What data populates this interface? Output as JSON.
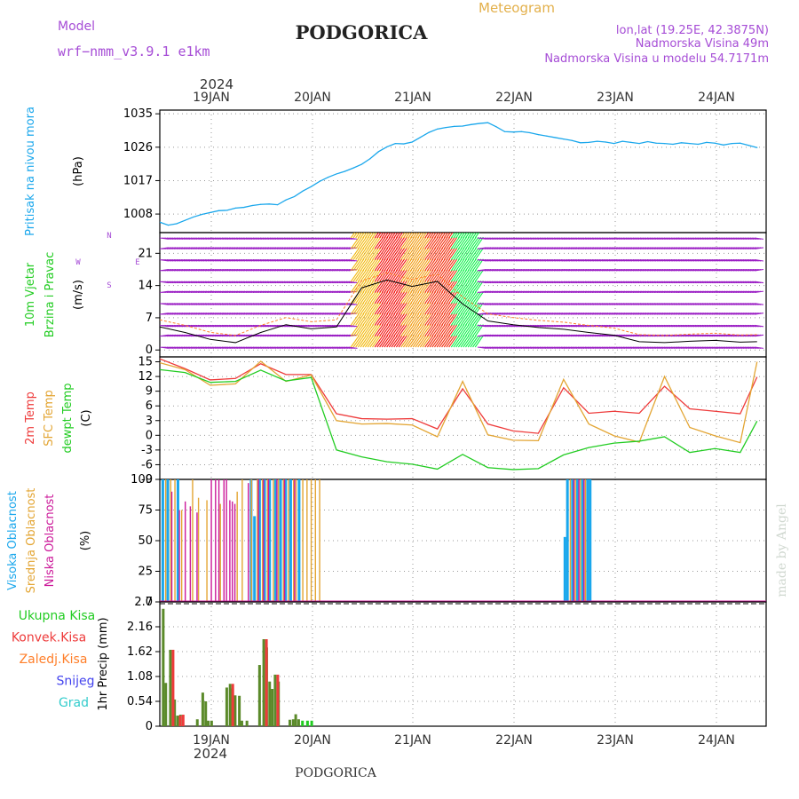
{
  "header": {
    "model_label": "Model",
    "model_name": "wrf−nmm_v3.9.1  e1km",
    "title": "PODGORICA",
    "meteogram": "Meteogram",
    "lonlat": "lon,lat (19.25E, 42.3875N)",
    "height": "Nadmorska Visina 49m",
    "model_height": "Nadmorska Visina u modelu 54.7171m",
    "year": "2024",
    "footer_title": "PODGORICA",
    "credit": "made by Angel"
  },
  "colors": {
    "pressure": "#1aa7ec",
    "temp2m": "#ee3b3b",
    "sfc": "#e3a533",
    "dewpt": "#22cc22",
    "high_cloud": "#1aa7ec",
    "mid_cloud": "#e3a533",
    "low_cloud": "#cc1a9a",
    "total_rain": "#5b8a2a",
    "conv_rain": "#ee3b3b",
    "frozen": "#ff7f2a",
    "snow": "#4444ee",
    "hail": "#33cccc",
    "wind_calm": "#9b1fc4"
  },
  "chart_data": [
    {
      "panel": "pressure",
      "type": "line",
      "ylabel": [
        "Pritisak na nivou mora",
        "(hPa)"
      ],
      "yticks": [
        1008,
        1017,
        1026,
        1035
      ],
      "ylim": [
        1003,
        1036
      ],
      "x_day_labels": [
        "19JAN",
        "20JAN",
        "21JAN",
        "22JAN",
        "23JAN",
        "24JAN"
      ],
      "x": [
        0,
        1,
        2,
        3,
        4,
        5,
        6,
        7,
        8,
        9,
        10,
        11,
        12,
        13,
        14,
        15,
        16,
        17,
        18,
        19,
        20,
        21,
        22,
        23,
        24,
        25,
        26,
        27,
        28,
        29,
        30,
        31,
        32,
        33,
        34,
        35,
        36,
        37,
        38,
        39,
        40,
        41,
        42,
        43,
        44,
        45,
        46,
        47,
        48,
        49,
        50,
        51,
        52,
        53,
        54,
        55,
        56,
        57,
        58,
        59,
        60,
        61,
        62,
        63,
        64,
        65,
        66,
        67,
        68,
        69,
        70,
        71
      ],
      "values": [
        1005.8,
        1005.0,
        1005.4,
        1006.3,
        1007.2,
        1007.9,
        1008.4,
        1008.9,
        1009.0,
        1009.6,
        1009.8,
        1010.3,
        1010.6,
        1010.7,
        1010.5,
        1011.8,
        1012.7,
        1014.2,
        1015.4,
        1016.8,
        1017.9,
        1018.8,
        1019.5,
        1020.4,
        1021.4,
        1022.9,
        1024.8,
        1026.1,
        1027.0,
        1026.9,
        1027.4,
        1028.7,
        1030.0,
        1030.9,
        1031.3,
        1031.6,
        1031.7,
        1032.1,
        1032.4,
        1032.6,
        1031.5,
        1030.2,
        1030.1,
        1030.2,
        1029.9,
        1029.4,
        1029.0,
        1028.6,
        1028.2,
        1027.8,
        1027.2,
        1027.3,
        1027.6,
        1027.4,
        1027.0,
        1027.6,
        1027.3,
        1027.0,
        1027.5,
        1027.1,
        1027.0,
        1026.8,
        1027.2,
        1027.0,
        1026.8,
        1027.3,
        1027.1,
        1026.6,
        1027.0,
        1027.1,
        1026.5,
        1025.9
      ]
    },
    {
      "panel": "wind",
      "type": "line",
      "ylabel": [
        "10m Vjetar",
        "Brzina i Pravac",
        "(m/s)"
      ],
      "compass": {
        "n": "N",
        "w": "W",
        "e": "E",
        "s": "S"
      },
      "yticks": [
        0,
        7,
        14,
        21
      ],
      "ylim": [
        -1.5,
        25.5
      ],
      "x": [
        0,
        3,
        6,
        9,
        12,
        15,
        18,
        21,
        24,
        27,
        30,
        33,
        36,
        39,
        42,
        45,
        48,
        51,
        54,
        57,
        60,
        63,
        66,
        69,
        71
      ],
      "values": [
        5.0,
        3.8,
        2.3,
        1.6,
        3.8,
        5.5,
        4.6,
        5.0,
        13.5,
        15.2,
        13.8,
        14.9,
        10.0,
        6.3,
        5.5,
        4.9,
        4.5,
        3.8,
        3.2,
        1.8,
        1.6,
        1.9,
        2.1,
        1.7,
        1.8
      ]
    },
    {
      "panel": "temperature",
      "type": "line",
      "ylabel": [
        "2m Temp",
        "SFC Temp",
        "dewpt Temp",
        "(C)"
      ],
      "yticks": [
        -9,
        -6,
        -3,
        0,
        3,
        6,
        9,
        12,
        15
      ],
      "ylim": [
        -9,
        16
      ],
      "x": [
        0,
        3,
        6,
        9,
        12,
        15,
        18,
        21,
        24,
        27,
        30,
        33,
        36,
        39,
        42,
        45,
        48,
        51,
        54,
        57,
        60,
        63,
        66,
        69,
        71
      ],
      "series": [
        {
          "name": "2m Temp",
          "values": [
            15.6,
            13.6,
            11.3,
            11.6,
            14.6,
            12.4,
            12.4,
            4.4,
            3.4,
            3.3,
            3.4,
            1.3,
            9.5,
            2.3,
            0.9,
            0.4,
            9.7,
            4.5,
            4.9,
            4.5,
            10.0,
            5.4,
            4.9,
            4.4,
            11.9
          ]
        },
        {
          "name": "SFC Temp",
          "values": [
            14.8,
            13.4,
            10.2,
            10.5,
            15.1,
            11.0,
            12.3,
            3.0,
            2.3,
            2.4,
            2.1,
            -0.3,
            11.0,
            0.1,
            -1.0,
            -1.1,
            11.4,
            2.3,
            -0.1,
            -1.4,
            12.0,
            1.6,
            -0.1,
            -1.5,
            15.0
          ]
        },
        {
          "name": "dewpt Temp",
          "values": [
            13.4,
            12.8,
            10.8,
            11.0,
            13.3,
            11.1,
            11.8,
            -3.0,
            -4.4,
            -5.4,
            -5.9,
            -6.9,
            -3.9,
            -6.6,
            -7.0,
            -6.8,
            -4.0,
            -2.5,
            -1.6,
            -1.2,
            -0.3,
            -3.5,
            -2.7,
            -3.5,
            2.9
          ]
        }
      ]
    },
    {
      "panel": "clouds",
      "type": "bar",
      "ylabel": [
        "Visoka Oblacnost",
        "Srednja Oblacnost",
        "Niska Oblacnost",
        "(%)"
      ],
      "yticks": [
        0,
        25,
        50,
        75,
        100
      ],
      "ylim": [
        0,
        100
      ],
      "x": [
        0.2,
        0.5,
        0.8,
        1.1,
        1.6,
        2.0,
        2.4,
        2.7,
        3.3,
        3.7,
        4.1,
        4.4,
        5.1,
        5.4,
        5.8,
        6.3,
        6.7,
        7.0,
        7.3,
        7.6,
        8.0,
        8.3,
        8.6,
        9.0,
        9.6,
        10.2,
        10.7,
        11.1,
        11.4,
        11.7,
        12.0,
        12.3,
        12.6,
        12.9,
        13.3,
        13.6,
        13.9,
        14.2,
        14.5,
        14.8,
        15.1,
        15.4,
        15.7,
        16.0,
        16.4,
        16.8,
        17.3,
        17.8,
        18.3,
        18.8,
        19.3,
        19.7,
        20.1,
        20.5,
        20.8,
        21.2,
        21.6,
        22.0,
        22.5,
        23.0,
        23.5,
        24.0,
        24.5,
        25.0,
        48.0,
        48.3,
        48.6,
        48.9,
        49.2,
        49.5,
        49.8,
        50.1,
        50.4,
        50.7,
        51.0
      ],
      "series": [
        {
          "name": "Visoka Oblacnost",
          "values": [
            100,
            0,
            100,
            0,
            0,
            100,
            0,
            0,
            0,
            0,
            0,
            0,
            0,
            0,
            0,
            0,
            0,
            0,
            0,
            0,
            0,
            0,
            0,
            0,
            0,
            0,
            100,
            70,
            0,
            100,
            0,
            100,
            0,
            100,
            0,
            100,
            0,
            100,
            0,
            100,
            0,
            100,
            0,
            0,
            100,
            0,
            0,
            0,
            0,
            0,
            0,
            0,
            0,
            0,
            0,
            0,
            0,
            0,
            0,
            0,
            0,
            0,
            0,
            0,
            53,
            100,
            0,
            100,
            0,
            100,
            0,
            100,
            0,
            100,
            100
          ]
        },
        {
          "name": "Srednja Oblacnost",
          "values": [
            0,
            100,
            0,
            100,
            100,
            0,
            75,
            0,
            0,
            100,
            0,
            85,
            0,
            83,
            0,
            0,
            0,
            80,
            0,
            0,
            0,
            0,
            0,
            90,
            100,
            0,
            100,
            0,
            100,
            0,
            100,
            0,
            100,
            0,
            100,
            0,
            100,
            0,
            100,
            0,
            100,
            0,
            100,
            100,
            0,
            100,
            100,
            100,
            100,
            100,
            0,
            0,
            0,
            0,
            0,
            0,
            0,
            0,
            0,
            0,
            0,
            0,
            0,
            0,
            0,
            0,
            100,
            0,
            100,
            0,
            100,
            0,
            100,
            0,
            0
          ]
        },
        {
          "name": "Niska Oblacnost",
          "values": [
            0,
            0,
            0,
            90,
            0,
            75,
            0,
            82,
            78,
            0,
            73,
            0,
            0,
            0,
            100,
            100,
            100,
            0,
            100,
            100,
            83,
            82,
            80,
            0,
            0,
            97,
            0,
            0,
            100,
            0,
            100,
            0,
            100,
            0,
            0,
            100,
            0,
            0,
            100,
            0,
            0,
            0,
            100,
            0,
            0,
            0,
            0,
            0,
            0,
            0,
            0,
            0,
            0,
            0,
            0,
            0,
            0,
            0,
            0,
            0,
            0,
            0,
            0,
            0,
            0,
            0,
            0,
            100,
            0,
            100,
            0,
            100,
            0,
            0,
            0
          ]
        }
      ]
    },
    {
      "panel": "precipitation",
      "type": "bar",
      "ylabel": [
        "1hr Precip",
        "(mm)"
      ],
      "legend": [
        "Ukupna  Kisa",
        "Konvek.Kisa",
        "Zaledj.Kisa",
        "Snijeg",
        "Grad"
      ],
      "yticks": [
        0,
        0.54,
        1.08,
        1.62,
        2.16,
        2.7
      ],
      "ylim": [
        0,
        2.7
      ],
      "x": [
        0.25,
        0.55,
        1.1,
        1.6,
        1.95,
        2.3,
        4.3,
        4.95,
        5.3,
        5.6,
        6.0,
        7.8,
        8.2,
        8.5,
        8.8,
        9.3,
        9.6,
        10.2,
        11.7,
        12.2,
        12.55,
        12.9,
        13.2,
        13.55,
        13.95,
        15.3,
        15.7,
        16.0,
        16.35
      ],
      "series": [
        {
          "name": "Ukupna  Kisa",
          "values": [
            2.55,
            0.94,
            1.66,
            0.58,
            0.23,
            0.25,
            0.15,
            0.73,
            0.54,
            0.12,
            0.12,
            0.84,
            0.92,
            0.82,
            0.67,
            0.66,
            0.12,
            0.12,
            1.33,
            1.89,
            1.71,
            0.97,
            0.81,
            1.12,
            0.97,
            0.14,
            0.15,
            0.26,
            0.15
          ]
        },
        {
          "name": "Konvek.Kisa",
          "values": [
            0,
            0,
            1.66,
            0,
            0.23,
            0.25,
            0,
            0,
            0,
            0,
            0,
            0,
            0.92,
            0,
            0,
            0,
            0,
            0,
            0,
            1.89,
            0,
            0,
            0,
            1.12,
            0,
            0,
            0,
            0,
            0
          ]
        }
      ]
    }
  ]
}
